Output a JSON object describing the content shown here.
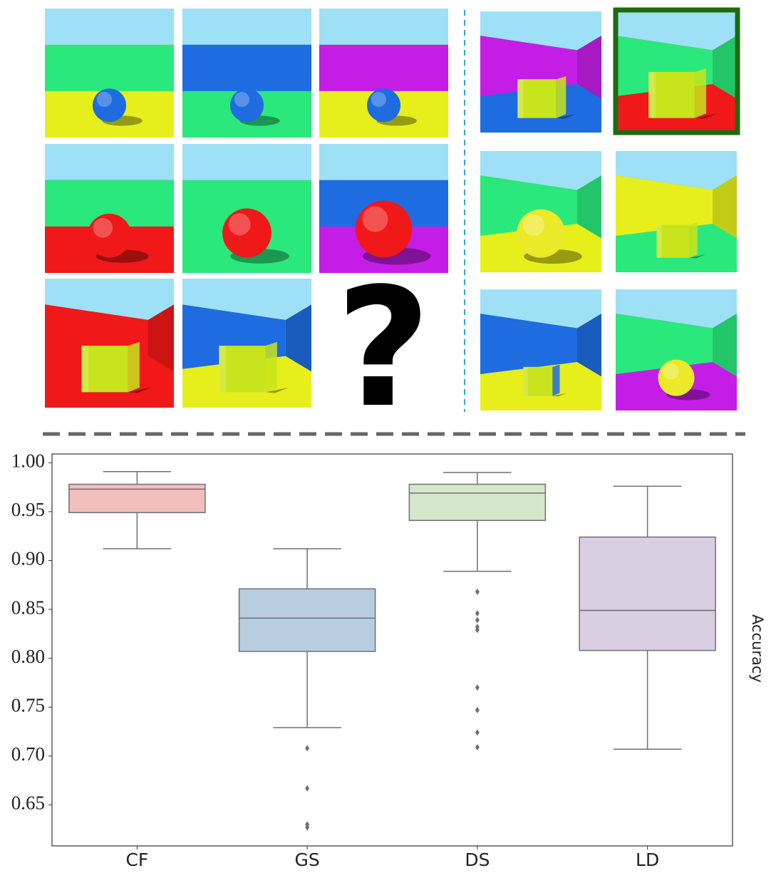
{
  "chart_data": {
    "type": "box",
    "categories": [
      "CF",
      "GS",
      "DS",
      "LD"
    ],
    "y_label": "Accuracy",
    "ylim": [
      0.608,
      1.009
    ],
    "yticks": [
      {
        "value": 1.0,
        "label": "1.00"
      },
      0.95,
      {
        "value": 0.9,
        "label": "0.90"
      },
      0.85,
      {
        "value": 0.8,
        "label": "0.80"
      },
      0.75,
      {
        "value": 0.7,
        "label": "0.70"
      },
      0.65
    ],
    "edge_color": "#6f6f6f",
    "boxes": [
      {
        "color": "#f2bfbe",
        "whislo": 0.912,
        "q1": 0.949,
        "med": 0.973,
        "q3": 0.978,
        "whishi": 0.991,
        "fliers": []
      },
      {
        "color": "#b9cde0",
        "whislo": 0.729,
        "q1": 0.807,
        "med": 0.841,
        "q3": 0.871,
        "whishi": 0.912,
        "fliers": [
          0.708,
          0.667,
          0.63,
          0.627
        ]
      },
      {
        "color": "#d3e7cd",
        "whislo": 0.889,
        "q1": 0.941,
        "med": 0.969,
        "q3": 0.978,
        "whishi": 0.99,
        "fliers": [
          0.868,
          0.846,
          0.839,
          0.832,
          0.829,
          0.77,
          0.747,
          0.724,
          0.709
        ]
      },
      {
        "color": "#dacee2",
        "whislo": 0.707,
        "q1": 0.808,
        "med": 0.849,
        "q3": 0.924,
        "whishi": 0.976,
        "fliers": []
      }
    ]
  },
  "puzzle": {
    "question_mark": "?"
  }
}
